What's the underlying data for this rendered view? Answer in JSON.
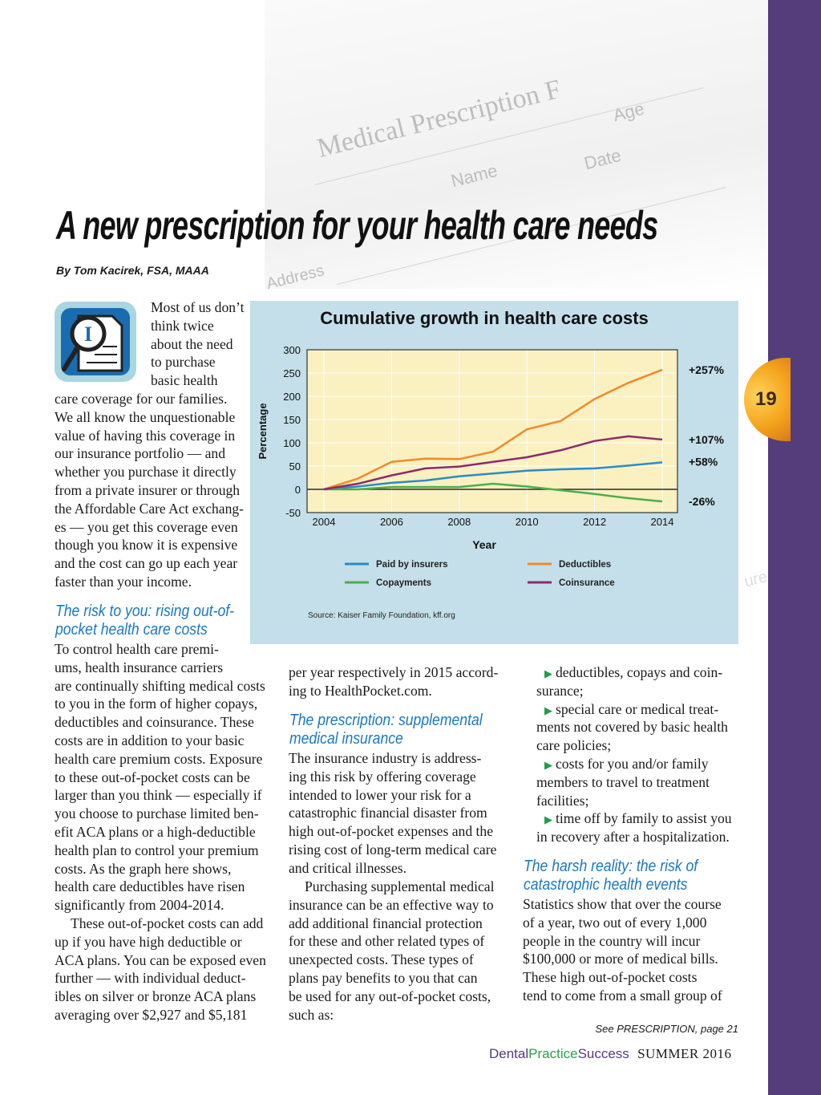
{
  "background_pad": {
    "title": "Medical Prescription F",
    "fields": [
      "Age",
      "Date",
      "Name",
      "Address",
      "ure"
    ]
  },
  "page_number": "19",
  "article": {
    "title": "A new prescription for your health care needs",
    "byline": "By Tom Kacirek, FSA, MAAA"
  },
  "col1": {
    "intro_lines": [
      "Most of us don’t",
      "think twice",
      "about the need",
      "to purchase",
      "basic health"
    ],
    "intro_lines_full": [
      "care coverage for our families.",
      "We all know the unquestionable",
      "value of having this coverage in",
      "our insurance portfolio — and",
      "whether you purchase it directly",
      "from a private insurer or through",
      "the Affordable Care Act exchang-",
      "es — you get this coverage even",
      "though you know it is expensive",
      "and the cost can go up each year",
      "faster than your income."
    ],
    "heading": [
      "The risk to you: rising out-of-",
      "pocket health care costs"
    ],
    "body_lines": [
      "To control health care premi-",
      "ums, health insurance carriers",
      "are continually shifting medical costs",
      "to you in the form of higher copays,",
      "deductibles and coinsurance. These",
      "costs are in addition to your basic",
      "health care premium costs. Exposure",
      "to these out-of-pocket costs can be",
      "larger than you think — especially if",
      "you choose to purchase limited ben-",
      "efit ACA plans or a high-deductible",
      "health plan to control your premium",
      "costs. As the graph here shows,",
      "health care deductibles have risen",
      "significantly from 2004-2014."
    ],
    "body2_lines": [
      "These out-of-pocket costs can add",
      "up if you have high deductible or",
      "ACA plans. You can be exposed even",
      "further — with individual deduct-",
      "ibles on silver or bronze ACA plans",
      "averaging over $2,927 and $5,181"
    ]
  },
  "col2": {
    "lead_lines": [
      "per year respectively in 2015 accord-",
      "ing to HealthPocket.com."
    ],
    "heading": [
      "The prescription: supplemental",
      "medical insurance"
    ],
    "body_lines": [
      "The insurance industry is address-",
      "ing this risk by offering coverage",
      "intended to lower your risk for a",
      "catastrophic financial disaster from",
      "high out-of-pocket expenses and the",
      "rising cost of long-term medical care",
      "and critical illnesses."
    ],
    "body2_lines": [
      "Purchasing supplemental medical",
      "insurance can be an effective way to",
      "add additional financial protection",
      "for these and other related types of",
      "unexpected costs. These types of",
      "plans pay benefits to you that can",
      "be used for any out-of-pocket costs,",
      "such as:"
    ]
  },
  "col3": {
    "bullets": [
      [
        "deductibles, copays and coin-",
        "surance;"
      ],
      [
        "special care or medical treat-",
        "ments not covered by basic health",
        "care policies;"
      ],
      [
        "costs for you and/or family",
        "members to travel to treatment",
        "facilities;"
      ],
      [
        "time off by family to assist you",
        "in recovery after a hospitalization."
      ]
    ],
    "heading": [
      "The harsh reality: the risk of",
      "catastrophic health events"
    ],
    "body_lines": [
      "Statistics show that over the course",
      "of a year, two out of every 1,000",
      "people in the country will incur",
      "$100,000 or more of medical bills.",
      "These high out-of-pocket costs",
      "tend to come from a small group of"
    ]
  },
  "footer": {
    "continued": "See PRESCRIPTION, page 21",
    "brand_dental": "Dental",
    "brand_practice": "Practice",
    "brand_success": "Success",
    "issue": "SUMMER 2016"
  },
  "colors": {
    "accent_blue": "#1a78c2",
    "sidebar_purple": "#553c7b",
    "brand_green": "#2e9e4a"
  },
  "chart_data": {
    "type": "line",
    "title": "Cumulative growth in health care costs",
    "xlabel": "Year",
    "ylabel": "Percentage",
    "x": [
      2004,
      2005,
      2006,
      2007,
      2008,
      2009,
      2010,
      2011,
      2012,
      2013,
      2014
    ],
    "xticks": [
      "2004",
      "2006",
      "2008",
      "2010",
      "2012",
      "2014"
    ],
    "yticks": [
      "300",
      "250",
      "200",
      "150",
      "100",
      "50",
      "0",
      "-50"
    ],
    "ylim": [
      -50,
      300
    ],
    "grid": true,
    "series": [
      {
        "name": "Paid by insurers",
        "color": "#2b8cc4",
        "values": [
          0,
          6,
          14,
          19,
          28,
          34,
          40,
          43,
          45,
          51,
          58
        ],
        "end_label": "+58%"
      },
      {
        "name": "Deductibles",
        "color": "#ef8a2e",
        "values": [
          0,
          23,
          59,
          66,
          65,
          81,
          129,
          147,
          194,
          229,
          257
        ],
        "end_label": "+257%"
      },
      {
        "name": "Copayments",
        "color": "#4cae4c",
        "values": [
          0,
          0,
          5,
          5,
          5,
          12,
          6,
          -2,
          -10,
          -19,
          -26
        ],
        "end_label": "-26%"
      },
      {
        "name": "Coinsurance",
        "color": "#8b2a6e",
        "values": [
          0,
          12,
          30,
          45,
          49,
          59,
          69,
          84,
          104,
          114,
          107
        ],
        "end_label": "+107%"
      }
    ],
    "legend_position": "bottom",
    "source": "Source: Kaiser Family Foundation, kff.org"
  }
}
